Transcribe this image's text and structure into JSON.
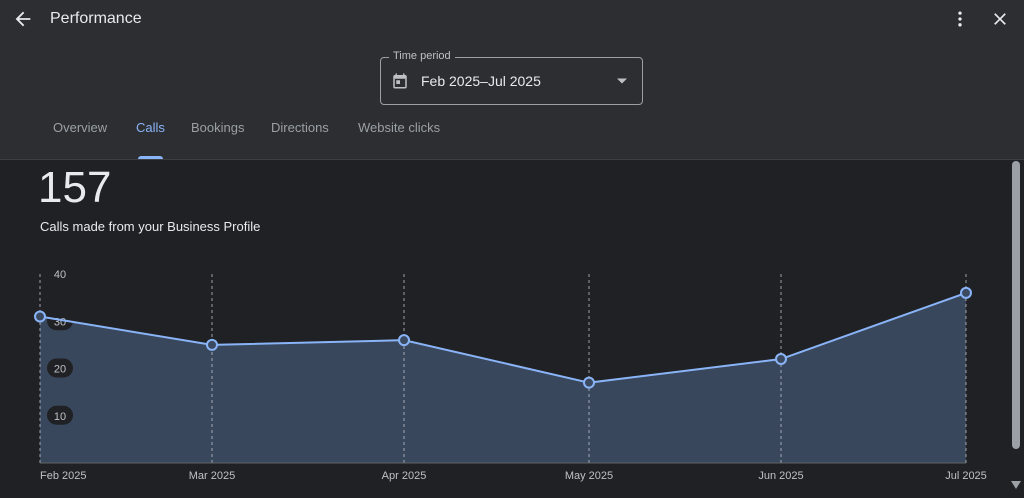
{
  "header": {
    "title": "Performance",
    "back_icon": "arrow-left-icon",
    "more_icon": "more-vert-icon",
    "close_icon": "close-icon"
  },
  "time_period": {
    "label": "Time period",
    "value": "Feb 2025–Jul 2025",
    "icon": "calendar-icon"
  },
  "tabs": [
    {
      "label": "Overview",
      "active": false
    },
    {
      "label": "Calls",
      "active": true
    },
    {
      "label": "Bookings",
      "active": false
    },
    {
      "label": "Directions",
      "active": false
    },
    {
      "label": "Website clicks",
      "active": false
    }
  ],
  "metric": {
    "value": "157",
    "description": "Calls made from your Business Profile"
  },
  "colors": {
    "accent": "#8ab4f8",
    "area_fill": "#3b4a60",
    "background": "#202124"
  },
  "chart_data": {
    "type": "area",
    "categories": [
      "Feb 2025",
      "Mar 2025",
      "Apr 2025",
      "May 2025",
      "Jun 2025",
      "Jul 2025"
    ],
    "values": [
      31,
      25,
      26,
      17,
      22,
      36
    ],
    "ylim": [
      0,
      40
    ],
    "yticks": [
      40,
      30,
      20,
      10
    ],
    "grid": "vertical-dashed"
  }
}
